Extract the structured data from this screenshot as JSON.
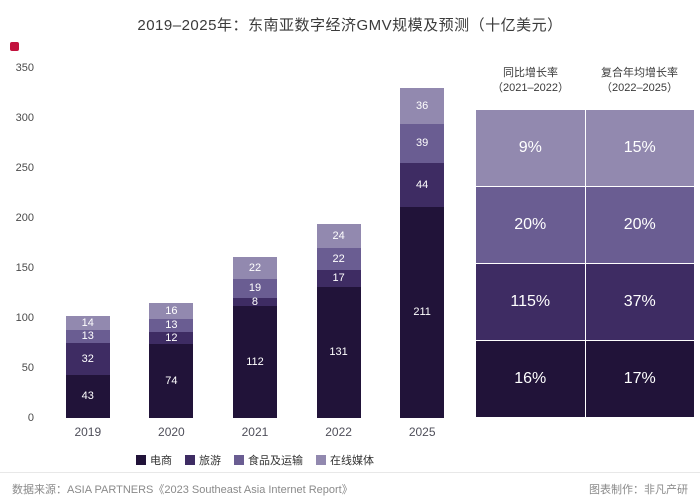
{
  "page": {
    "title": "2019–2025年：东南亚数字经济GMV规模及预测（十亿美元）",
    "footer": {
      "source": "数据来源：ASIA PARTNERS《2023 Southeast Asia Internet Report》",
      "credit": "图表制作：非凡产研"
    },
    "accent_color": "#c2123d"
  },
  "chart_data": {
    "type": "bar",
    "stacked": true,
    "title": "2019–2025年：东南亚数字经济GMV规模及预测（十亿美元）",
    "unit": "十亿美元",
    "categories": [
      "2019",
      "2020",
      "2021",
      "2022",
      "2025"
    ],
    "series": [
      {
        "name": "电商",
        "color": "#211339",
        "values": [
          43,
          74,
          112,
          131,
          211
        ]
      },
      {
        "name": "旅游",
        "color": "#3e2c63",
        "values": [
          32,
          12,
          8,
          17,
          44
        ]
      },
      {
        "name": "食品及运输",
        "color": "#6a5d92",
        "values": [
          13,
          13,
          19,
          22,
          39
        ]
      },
      {
        "name": "在线媒体",
        "color": "#9289af",
        "values": [
          14,
          16,
          22,
          24,
          36
        ]
      }
    ],
    "ylim": [
      0,
      350
    ],
    "yticks": [
      0,
      50,
      100,
      150,
      200,
      250,
      300,
      350
    ],
    "grid": false,
    "legend_position": "bottom"
  },
  "table": {
    "header_col1": {
      "line1": "同比增长率",
      "line2": "（2021–2022）"
    },
    "header_col2": {
      "line1": "复合年均增长率",
      "line2": "（2022–2025）"
    },
    "rows": [
      {
        "col1": "9%",
        "col2": "15%",
        "segment": "在线媒体",
        "color": "#9289af"
      },
      {
        "col1": "20%",
        "col2": "20%",
        "segment": "食品及运输",
        "color": "#6a5d92"
      },
      {
        "col1": "115%",
        "col2": "37%",
        "segment": "旅游",
        "color": "#3e2c63"
      },
      {
        "col1": "16%",
        "col2": "17%",
        "segment": "电商",
        "color": "#211339"
      }
    ]
  }
}
